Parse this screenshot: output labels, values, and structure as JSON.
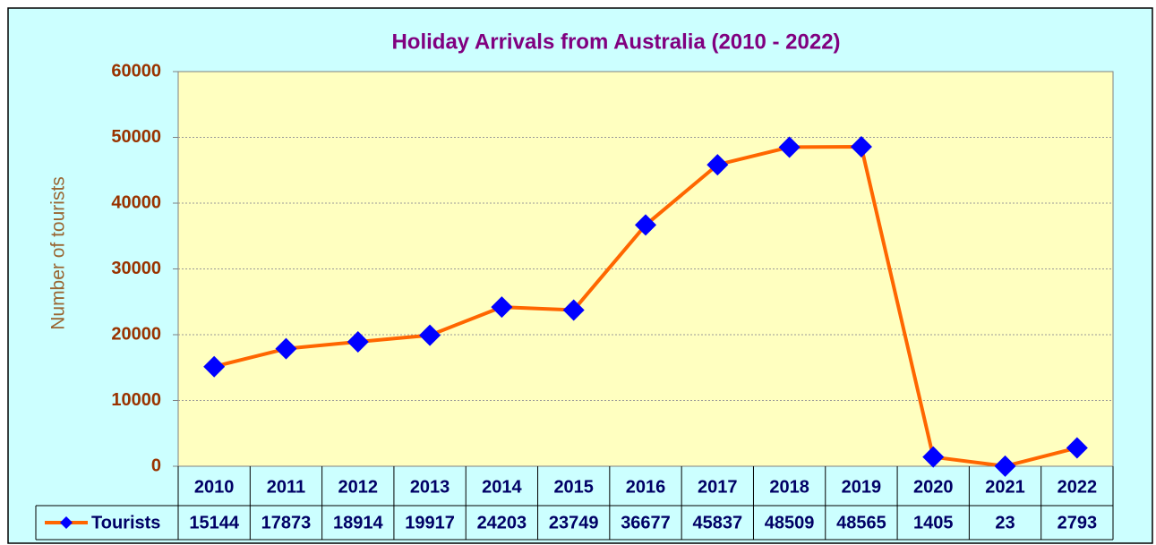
{
  "chart_data": {
    "type": "line",
    "title": "Holiday Arrivals from Australia (2010 - 2022)",
    "y_label": "Number of tourists",
    "categories": [
      "2010",
      "2011",
      "2012",
      "2013",
      "2014",
      "2015",
      "2016",
      "2017",
      "2018",
      "2019",
      "2020",
      "2021",
      "2022"
    ],
    "series": [
      {
        "name": "Tourists",
        "color": "#ff6600",
        "marker_color": "#0000ff",
        "values": [
          15144,
          17873,
          18914,
          19917,
          24203,
          23749,
          36677,
          45837,
          48509,
          48565,
          1405,
          23,
          2793
        ]
      }
    ],
    "ylim": [
      0,
      60000
    ],
    "yticks": [
      0,
      10000,
      20000,
      30000,
      40000,
      50000,
      60000
    ],
    "grid": true
  }
}
